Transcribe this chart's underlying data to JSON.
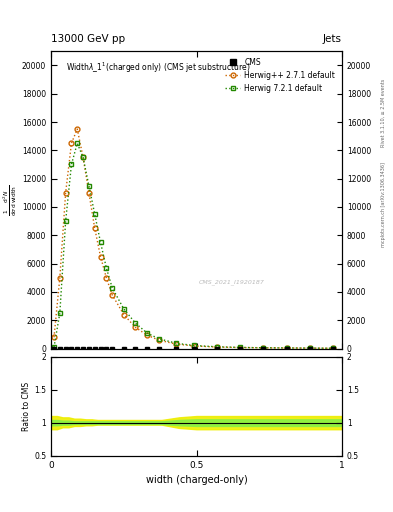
{
  "title_top": "13000 GeV pp",
  "title_right": "Jets",
  "plot_title": "Widthλ_1¹ (charged only) (CMS jet substructure)",
  "xlabel": "width (charged-only)",
  "ylabel_ratio": "Ratio to CMS",
  "right_label_top": "Rivet 3.1.10, ≥ 2.5M events",
  "right_label_bottom": "mcplots.cern.ch [arXiv:1306.3436]",
  "watermark": "CMS_2021_I1920187",
  "xlim": [
    0.0,
    1.0
  ],
  "ylim_main": [
    0,
    21000
  ],
  "ylim_ratio": [
    0.5,
    2.0
  ],
  "yticks_main": [
    0,
    2000,
    4000,
    6000,
    8000,
    10000,
    12000,
    14000,
    16000,
    18000,
    20000
  ],
  "herwig_pp_x": [
    0.01,
    0.03,
    0.05,
    0.07,
    0.09,
    0.11,
    0.13,
    0.15,
    0.17,
    0.19,
    0.21,
    0.25,
    0.29,
    0.33,
    0.37,
    0.43,
    0.49,
    0.57,
    0.65,
    0.73,
    0.81,
    0.89,
    0.97
  ],
  "herwig_pp_y": [
    800,
    5000,
    11000,
    14500,
    15500,
    13500,
    11000,
    8500,
    6500,
    5000,
    3800,
    2400,
    1500,
    950,
    600,
    320,
    190,
    110,
    75,
    55,
    44,
    35,
    25
  ],
  "herwig7_x": [
    0.01,
    0.03,
    0.05,
    0.07,
    0.09,
    0.11,
    0.13,
    0.15,
    0.17,
    0.19,
    0.21,
    0.25,
    0.29,
    0.33,
    0.37,
    0.43,
    0.49,
    0.57,
    0.65,
    0.73,
    0.81,
    0.89,
    0.97
  ],
  "herwig7_y": [
    100,
    2500,
    9000,
    13000,
    14500,
    13500,
    11500,
    9500,
    7500,
    5700,
    4300,
    2800,
    1800,
    1100,
    700,
    380,
    220,
    130,
    85,
    60,
    48,
    38,
    28
  ],
  "cms_x": [
    0.01,
    0.03,
    0.05,
    0.07,
    0.09,
    0.11,
    0.13,
    0.15,
    0.17,
    0.19,
    0.21,
    0.25,
    0.29,
    0.33,
    0.37,
    0.43,
    0.49,
    0.57,
    0.65,
    0.73,
    0.81,
    0.89,
    0.97
  ],
  "cms_y": [
    0,
    0,
    0,
    0,
    0,
    0,
    0,
    0,
    0,
    0,
    0,
    0,
    0,
    0,
    0,
    0,
    0,
    0,
    0,
    0,
    0,
    0,
    0
  ],
  "herwig_pp_color": "#cc6600",
  "herwig7_color": "#228800",
  "cms_color": "#000000",
  "band_yellow": "#eeee00",
  "band_green": "#88ee44"
}
